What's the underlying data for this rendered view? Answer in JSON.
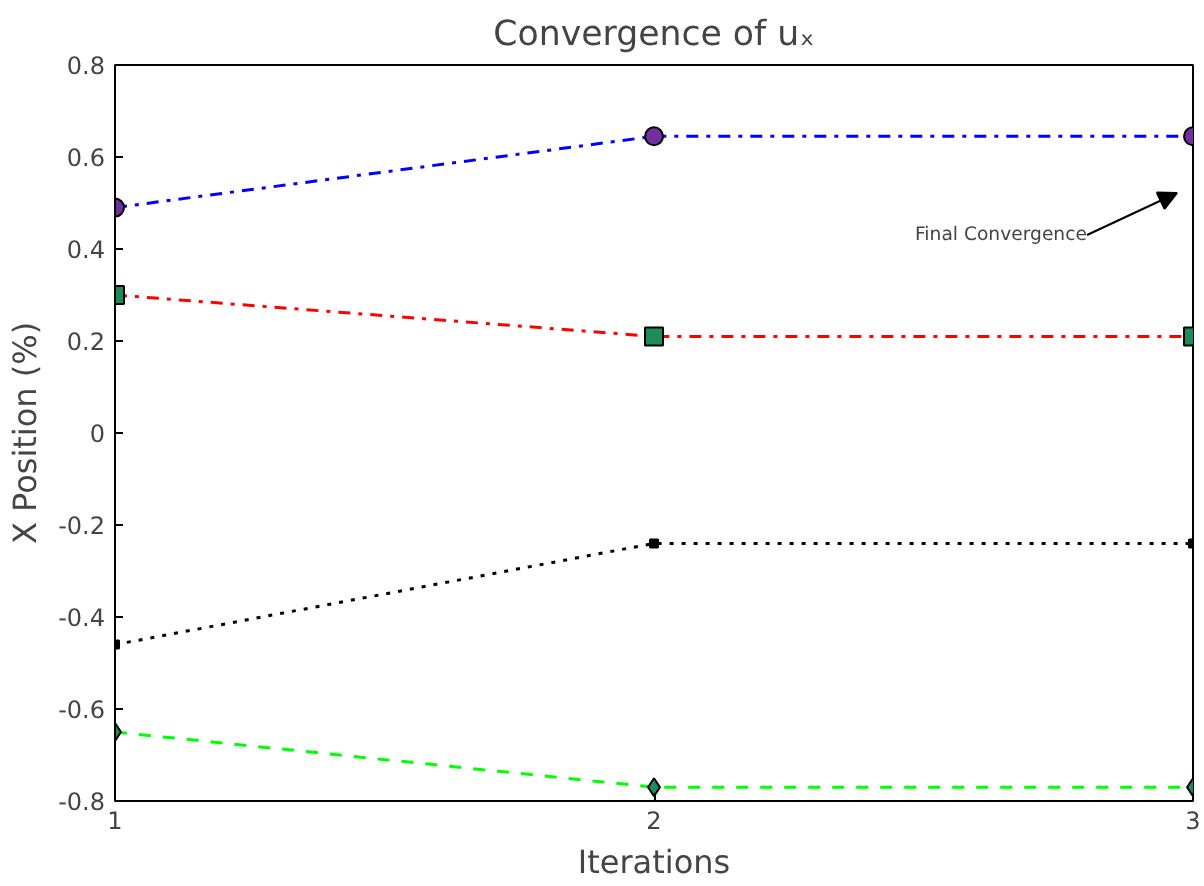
{
  "chart_data": {
    "type": "line",
    "title": "Convergence of uₓ",
    "xlabel": "Iterations",
    "ylabel": "X Position (%)",
    "x": [
      1,
      2,
      3
    ],
    "xlim": [
      1,
      3
    ],
    "xticks": [
      1,
      2,
      3
    ],
    "ylim": [
      -0.8,
      0.8
    ],
    "yticks": [
      -0.8,
      -0.6,
      -0.4,
      -0.2,
      0,
      0.2,
      0.4,
      0.6,
      0.8
    ],
    "grid": false,
    "series": [
      {
        "color": "#0000ff",
        "marker": "circle",
        "line_style": "dashdot",
        "values": [
          0.49,
          0.645,
          0.645
        ]
      },
      {
        "color": "#ff0000",
        "marker": "square",
        "line_style": "dashdot",
        "values": [
          0.3,
          0.21,
          0.21
        ]
      },
      {
        "color": "#000000",
        "marker": "square",
        "line_style": "dotted",
        "values": [
          -0.46,
          -0.24,
          -0.24
        ]
      },
      {
        "color": "#00ff00",
        "marker": "diamond",
        "line_style": "dashed",
        "values": [
          -0.65,
          -0.77,
          -0.77
        ]
      }
    ],
    "annotations": [
      "Final Convergence"
    ]
  }
}
